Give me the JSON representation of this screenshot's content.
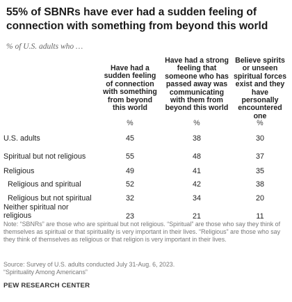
{
  "title": "55% of SBNRs have ever had a sudden feeling of connection with something from beyond this world",
  "subtitle": "% of U.S. adults who …",
  "chart_data": {
    "type": "table",
    "columns": [
      "Have had a sudden feeling of connection with something from beyond this world",
      "Have had a strong feeling that someone who has passed away was communicating with them from beyond this world",
      "Believe spirits or unseen spiritual forces exist and they have personally encountered one"
    ],
    "unit": "%",
    "rows": [
      {
        "label": "U.S. adults",
        "values": [
          45,
          38,
          30
        ]
      },
      {
        "label": "Spiritual but not religious",
        "values": [
          55,
          48,
          37
        ]
      },
      {
        "label": "Religious",
        "values": [
          49,
          41,
          35
        ]
      },
      {
        "label": "Religious and spiritual",
        "values": [
          52,
          42,
          38
        ]
      },
      {
        "label": "Religious but not spiritual",
        "values": [
          32,
          34,
          20
        ]
      },
      {
        "label": "Neither spiritual nor religious",
        "values": [
          23,
          21,
          11
        ]
      }
    ]
  },
  "note": "Note: “SBNRs” are those who are spiritual but not religious. “Spiritual” are those who say they think of themselves as spiritual or that spirituality is very important in their lives. “Religious” are those who say they think of themselves as religious or that religion is very important in their lives.",
  "source_lines": [
    "Source: Survey of U.S. adults conducted July 31-Aug. 6, 2023.",
    "“Spirituality Among Americans”"
  ],
  "footer": "PEW RESEARCH CENTER"
}
